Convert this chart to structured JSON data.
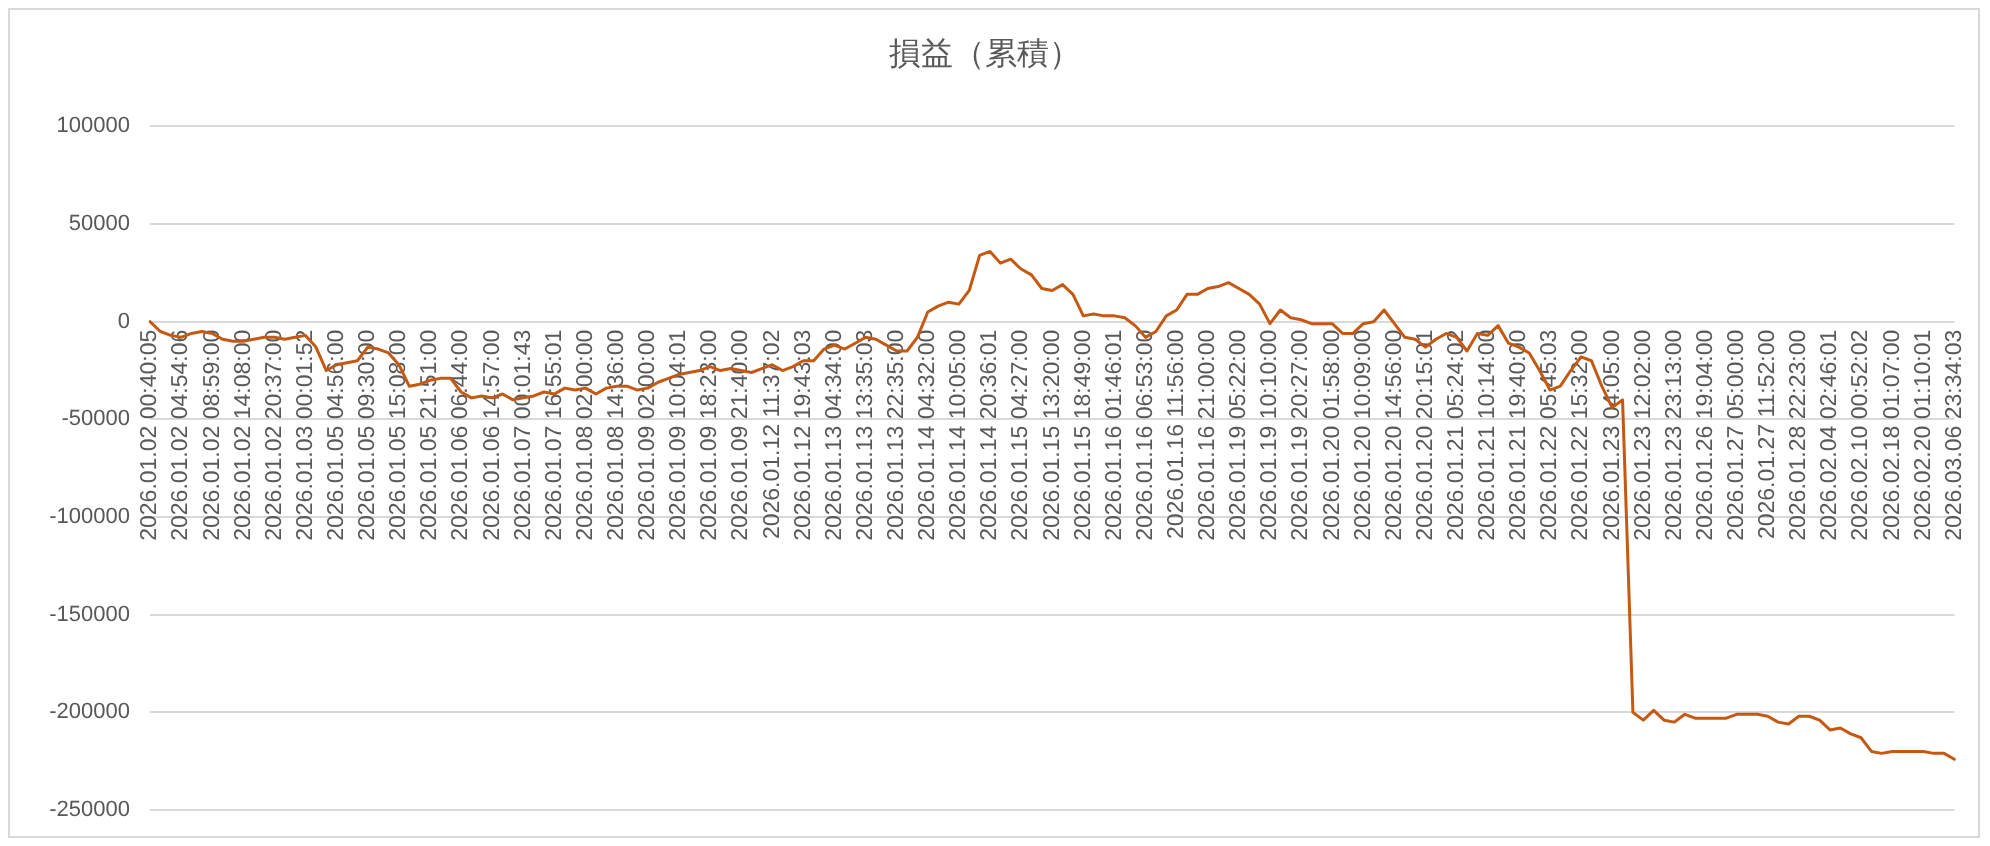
{
  "chart_data": {
    "type": "line",
    "title": "損益（累積）",
    "categories": [
      "2026.01.02 00:40:05",
      null,
      null,
      "2026.01.02 04:54:06",
      null,
      null,
      "2026.01.02 08:59:00",
      null,
      null,
      "2026.01.02 14:08:00",
      null,
      null,
      "2026.01.02 20:37:00",
      null,
      null,
      "2026.01.03 00:01:52",
      null,
      null,
      "2026.01.05 04:56:00",
      null,
      null,
      "2026.01.05 09:30:00",
      null,
      null,
      "2026.01.05 15:08:00",
      null,
      null,
      "2026.01.05 21:51:00",
      null,
      null,
      "2026.01.06 06:44:00",
      null,
      null,
      "2026.01.06 14:57:00",
      null,
      null,
      "2026.01.07 00:01:43",
      null,
      null,
      "2026.01.07 16:55:01",
      null,
      null,
      "2026.01.08 02:00:00",
      null,
      null,
      "2026.01.08 14:36:00",
      null,
      null,
      "2026.01.09 02:00:00",
      null,
      null,
      "2026.01.09 10:04:01",
      null,
      null,
      "2026.01.09 18:23:00",
      null,
      null,
      "2026.01.09 21:40:00",
      null,
      null,
      "2026.01.12 11:37:02",
      null,
      null,
      "2026.01.12 19:43:03",
      null,
      null,
      "2026.01.13 04:34:00",
      null,
      null,
      "2026.01.13 13:35:03",
      null,
      null,
      "2026.01.13 22:35:00",
      null,
      null,
      "2026.01.14 04:32:00",
      null,
      null,
      "2026.01.14 10:05:00",
      null,
      null,
      "2026.01.14 20:36:01",
      null,
      null,
      "2026.01.15 04:27:00",
      null,
      null,
      "2026.01.15 13:20:00",
      null,
      null,
      "2026.01.15 18:49:00",
      null,
      null,
      "2026.01.16 01:46:01",
      null,
      null,
      "2026.01.16 06:53:00",
      null,
      null,
      "2026.01.16 11:56:00",
      null,
      null,
      "2026.01.16 21:00:00",
      null,
      null,
      "2026.01.19 05:22:00",
      null,
      null,
      "2026.01.19 10:10:00",
      null,
      null,
      "2026.01.19 20:27:00",
      null,
      null,
      "2026.01.20 01:58:00",
      null,
      null,
      "2026.01.20 10:09:00",
      null,
      null,
      "2026.01.20 14:56:00",
      null,
      null,
      "2026.01.20 20:15:01",
      null,
      null,
      "2026.01.21 05:24:02",
      null,
      null,
      "2026.01.21 10:14:00",
      null,
      null,
      "2026.01.21 19:40:00",
      null,
      null,
      "2026.01.22 05:45:03",
      null,
      null,
      "2026.01.22 15:32:00",
      null,
      null,
      "2026.01.23 04:05:00",
      null,
      null,
      "2026.01.23 12:02:00",
      null,
      null,
      "2026.01.23 23:13:00",
      null,
      null,
      "2026.01.26 19:04:00",
      null,
      null,
      "2026.01.27 05:00:00",
      null,
      null,
      "2026.01.27 11:52:00",
      null,
      null,
      "2026.01.28 22:23:00",
      null,
      null,
      "2026.02.04 02:46:01",
      null,
      null,
      "2026.02.10 00:52:02",
      null,
      null,
      "2026.02.18 01:07:00",
      null,
      null,
      "2026.02.20 01:10:01",
      null,
      null,
      "2026.03.06 23:34:03"
    ],
    "values": [
      0,
      -5000,
      -7000,
      -8000,
      -6000,
      -5000,
      -6000,
      -9000,
      -10000,
      -10000,
      -9000,
      -8000,
      -8000,
      -9000,
      -8000,
      -7000,
      -13000,
      -25000,
      -22000,
      -21000,
      -20000,
      -13000,
      -14000,
      -16000,
      -22000,
      -33000,
      -32000,
      -30000,
      -29000,
      -29000,
      -36000,
      -39000,
      -38000,
      -39000,
      -37000,
      -40000,
      -39000,
      -38000,
      -36000,
      -37000,
      -34000,
      -35000,
      -34000,
      -37000,
      -34000,
      -33000,
      -33000,
      -35000,
      -34000,
      -31000,
      -29000,
      -27000,
      -26000,
      -25000,
      -23000,
      -25000,
      -24000,
      -25000,
      -26000,
      -24000,
      -22000,
      -25000,
      -23000,
      -20000,
      -20000,
      -14000,
      -12000,
      -14000,
      -11000,
      -8000,
      -9000,
      -12000,
      -15000,
      -15000,
      -8000,
      5000,
      8000,
      10000,
      9000,
      16000,
      34000,
      36000,
      30000,
      32000,
      27000,
      24000,
      17000,
      16000,
      19000,
      14000,
      3000,
      4000,
      3000,
      3000,
      2000,
      -2000,
      -8000,
      -5000,
      3000,
      6000,
      14000,
      14000,
      17000,
      18000,
      20000,
      17000,
      14000,
      9000,
      -1000,
      6000,
      2000,
      1000,
      -1000,
      -1000,
      -1000,
      -6000,
      -6000,
      -1000,
      0,
      6000,
      -1000,
      -8000,
      -9000,
      -13000,
      -9000,
      -6000,
      -8000,
      -15000,
      -6000,
      -7000,
      -2000,
      -11000,
      -13000,
      -16000,
      -25000,
      -35000,
      -33000,
      -25000,
      -18000,
      -20000,
      -33000,
      -44000,
      -40000,
      -200000,
      -204000,
      -199000,
      -204000,
      -205000,
      -201000,
      -203000,
      -203000,
      -203000,
      -203000,
      -201000,
      -201000,
      -201000,
      -202000,
      -205000,
      -206000,
      -202000,
      -202000,
      -204000,
      -209000,
      -208000,
      -211000,
      -213000,
      -220000,
      -221000,
      -220000,
      -220000,
      -220000,
      -220000,
      -221000,
      -221000,
      -224000
    ],
    "color": "#c65911",
    "ylim": [
      -250000,
      100000
    ],
    "yticks": [
      -250000,
      -200000,
      -150000,
      -100000,
      -50000,
      0,
      50000,
      100000
    ],
    "grid": "y",
    "legend": false,
    "marker": "none"
  }
}
